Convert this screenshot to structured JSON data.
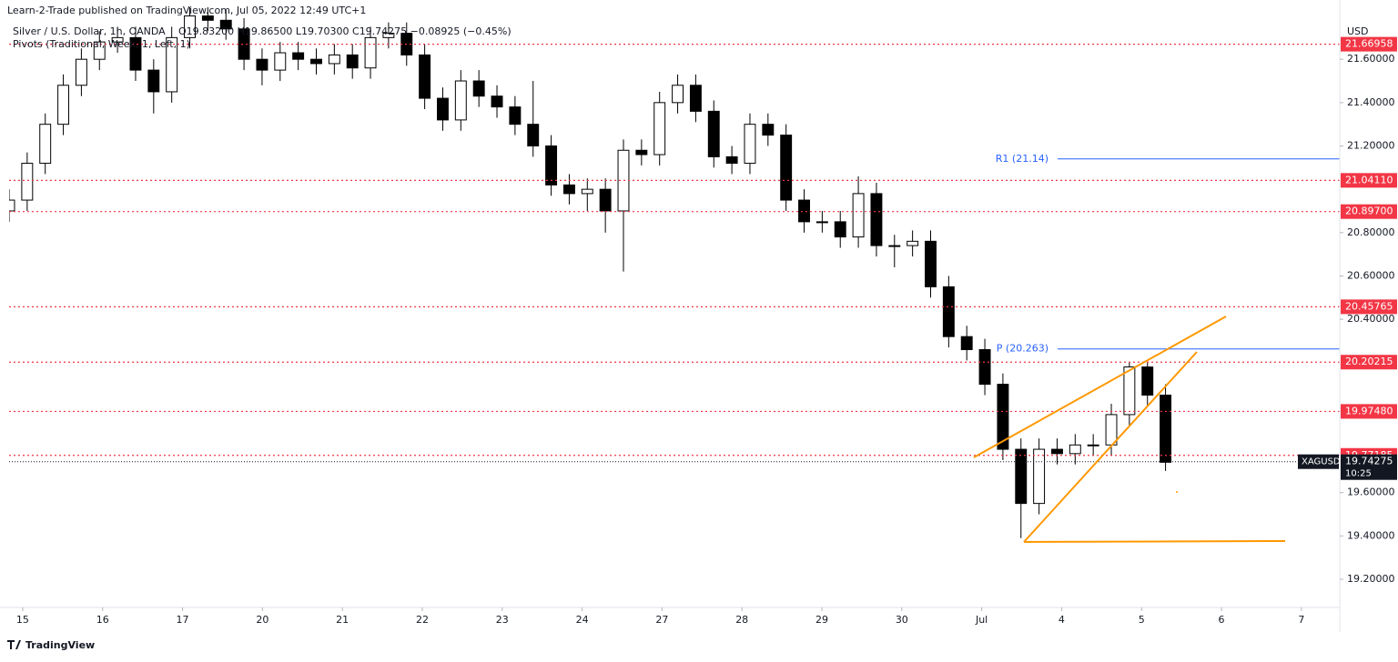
{
  "chart_data": {
    "type": "candlestick",
    "publisher": "Learn-2-Trade published on TradingView.com, Jul 05, 2022 12:49 UTC+1",
    "title": "Silver / U.S. Dollar, 1h, OANDA",
    "ohlc_legend": "O19.83200 H19.86500 L19.70300 C19.74275 −0.08925 (−0.45%)",
    "indicator": "Pivots (Traditional, Week, 1, Left, 1)",
    "currency": "USD",
    "brand": "TradingView",
    "up_color": "#ffffff",
    "down_color": "#000000",
    "outline_color": "#000000",
    "ylim": [
      19.07,
      21.84
    ],
    "yticks": [
      {
        "value": 21.6,
        "label": "21.60000"
      },
      {
        "value": 21.4,
        "label": "21.40000"
      },
      {
        "value": 21.2,
        "label": "21.20000"
      },
      {
        "value": 20.8,
        "label": "20.80000"
      },
      {
        "value": 20.6,
        "label": "20.60000"
      },
      {
        "value": 20.4,
        "label": "20.40000"
      },
      {
        "value": 19.6,
        "label": "19.60000"
      },
      {
        "value": 19.4,
        "label": "19.40000"
      },
      {
        "value": 19.2,
        "label": "19.20000"
      }
    ],
    "xlim": [
      -0.17,
      16.48
    ],
    "xticks": [
      {
        "value": 0,
        "label": "15"
      },
      {
        "value": 1,
        "label": "16"
      },
      {
        "value": 2,
        "label": "17"
      },
      {
        "value": 3,
        "label": "20"
      },
      {
        "value": 4,
        "label": "21"
      },
      {
        "value": 5,
        "label": "22"
      },
      {
        "value": 6,
        "label": "23"
      },
      {
        "value": 7,
        "label": "24"
      },
      {
        "value": 8,
        "label": "27"
      },
      {
        "value": 9,
        "label": "28"
      },
      {
        "value": 10,
        "label": "29"
      },
      {
        "value": 11,
        "label": "30"
      },
      {
        "value": 12,
        "label": "Jul"
      },
      {
        "value": 13,
        "label": "4"
      },
      {
        "value": 14,
        "label": "5"
      },
      {
        "value": 15,
        "label": "6"
      },
      {
        "value": 16,
        "label": "7"
      }
    ],
    "candle_span": [
      -0.17,
      14.3
    ],
    "open": [
      20.9,
      20.95,
      21.12,
      21.3,
      21.48,
      21.6,
      21.68,
      21.7,
      21.55,
      21.45,
      21.7,
      21.8,
      21.78,
      21.74,
      21.6,
      21.55,
      21.63,
      21.6,
      21.58,
      21.62,
      21.56,
      21.7,
      21.72,
      21.62,
      21.42,
      21.32,
      21.5,
      21.43,
      21.38,
      21.3,
      21.2,
      21.02,
      20.98,
      21.0,
      20.9,
      21.18,
      21.16,
      21.4,
      21.48,
      21.36,
      21.15,
      21.12,
      21.3,
      21.25,
      20.95,
      20.85,
      20.85,
      20.78,
      20.98,
      20.74,
      20.74,
      20.76,
      20.55,
      20.32,
      20.26,
      20.1,
      19.8,
      19.55,
      19.8,
      19.78,
      19.82,
      19.82,
      19.96,
      20.18,
      20.05
    ],
    "high": [
      21.0,
      21.17,
      21.35,
      21.53,
      21.65,
      21.73,
      21.75,
      21.75,
      21.6,
      21.75,
      21.85,
      21.85,
      21.83,
      21.79,
      21.65,
      21.68,
      21.68,
      21.65,
      21.67,
      21.67,
      21.75,
      21.77,
      21.77,
      21.67,
      21.47,
      21.55,
      21.55,
      21.48,
      21.43,
      21.5,
      21.25,
      21.07,
      21.05,
      21.05,
      21.23,
      21.23,
      21.45,
      21.53,
      21.53,
      21.41,
      21.2,
      21.35,
      21.35,
      21.3,
      21.0,
      20.9,
      20.9,
      21.06,
      21.03,
      20.79,
      20.81,
      20.81,
      20.6,
      20.37,
      20.31,
      20.15,
      19.85,
      19.85,
      19.85,
      19.87,
      19.87,
      20.01,
      20.2,
      20.2,
      20.1
    ],
    "low": [
      20.85,
      20.9,
      21.07,
      21.25,
      21.43,
      21.55,
      21.63,
      21.5,
      21.35,
      21.4,
      21.65,
      21.73,
      21.69,
      21.55,
      21.48,
      21.5,
      21.55,
      21.53,
      21.53,
      21.51,
      21.51,
      21.65,
      21.57,
      21.37,
      21.27,
      21.27,
      21.38,
      21.33,
      21.25,
      21.15,
      20.97,
      20.93,
      20.9,
      20.8,
      20.62,
      21.11,
      21.11,
      21.35,
      21.31,
      21.1,
      21.07,
      21.07,
      21.2,
      20.9,
      20.8,
      20.8,
      20.73,
      20.73,
      20.69,
      20.64,
      20.69,
      20.5,
      20.27,
      20.21,
      20.05,
      19.75,
      19.39,
      19.5,
      19.73,
      19.73,
      19.77,
      19.77,
      19.91,
      20.0,
      19.7
    ],
    "close": [
      20.95,
      21.12,
      21.3,
      21.48,
      21.6,
      21.68,
      21.7,
      21.55,
      21.45,
      21.7,
      21.8,
      21.78,
      21.74,
      21.6,
      21.55,
      21.63,
      21.6,
      21.58,
      21.62,
      21.56,
      21.7,
      21.72,
      21.62,
      21.42,
      21.32,
      21.5,
      21.43,
      21.38,
      21.3,
      21.2,
      21.02,
      20.98,
      21.0,
      20.9,
      21.18,
      21.16,
      21.4,
      21.48,
      21.36,
      21.15,
      21.12,
      21.3,
      21.25,
      20.95,
      20.85,
      20.85,
      20.78,
      20.98,
      20.74,
      20.74,
      20.76,
      20.55,
      20.32,
      20.26,
      20.1,
      19.8,
      19.55,
      19.8,
      19.78,
      19.82,
      19.82,
      19.96,
      20.18,
      20.05,
      19.74
    ],
    "levels_color": "#f23645",
    "levels": [
      {
        "value": 21.66958,
        "label": "21.66958"
      },
      {
        "value": 21.0411,
        "label": "21.04110"
      },
      {
        "value": 20.897,
        "label": "20.89700"
      },
      {
        "value": 20.45765,
        "label": "20.45765"
      },
      {
        "value": 20.20215,
        "label": "20.20215"
      },
      {
        "value": 19.9748,
        "label": "19.97480"
      },
      {
        "value": 19.77185,
        "label": "19.77185"
      }
    ],
    "pivots_color": "#2962ff",
    "pivots": [
      {
        "value": 21.14,
        "label": "R1 (21.14)"
      },
      {
        "value": 20.263,
        "label": "P (20.263)"
      }
    ],
    "last_price": {
      "value": 19.74275,
      "label": "19.74275",
      "symbol": "XAGUSD",
      "countdown": "10:25"
    }
  }
}
